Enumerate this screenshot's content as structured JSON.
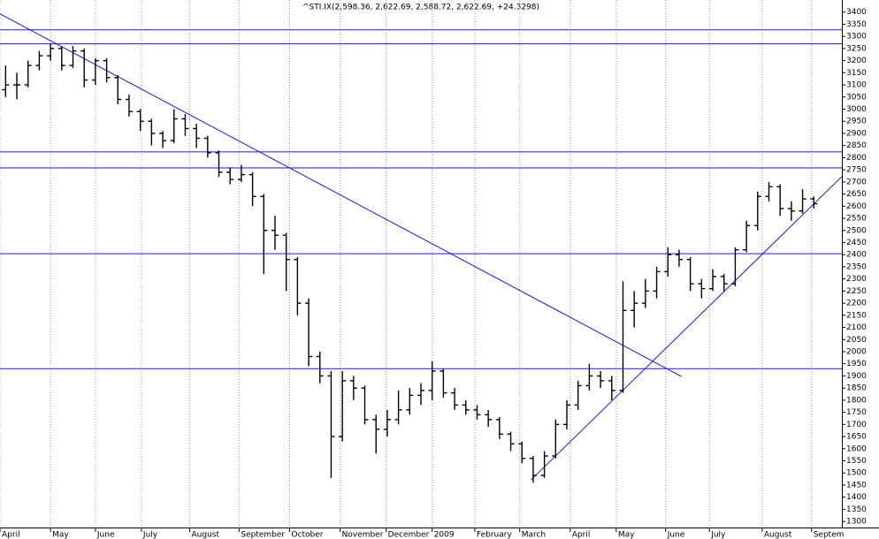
{
  "chart_data": {
    "type": "ohlc",
    "title": "^STI.IX(2,598.36, 2,622.69, 2,588.72, 2,622.69, +24.3298)",
    "x": [
      0.5,
      1.5,
      2.5,
      3.5,
      4.5,
      5.5,
      6.5,
      7.5,
      8.5,
      9.5,
      10.5,
      11.5,
      12.5,
      13.5,
      14.5,
      15.5,
      16.5,
      17.5,
      18.5,
      19.5,
      20.5,
      21.5,
      22.5,
      23.5,
      24.5,
      25.5,
      26.5,
      27.5,
      28.5,
      29.5,
      30.5,
      31.5,
      32.5,
      33.5,
      34.5,
      35.5,
      36.5,
      37.5,
      38.5,
      39.5,
      40.5,
      41.5,
      42.5,
      43.5,
      44.5,
      45.5,
      46.5,
      47.5,
      48.5,
      49.5,
      50.5,
      51.5,
      52.5,
      53.5,
      54.5,
      55.5,
      56.5,
      57.5,
      58.5,
      59.5,
      60.5,
      61.5,
      62.5,
      63.5,
      64.5,
      65.5,
      66.5,
      67.5,
      68.5,
      69.5,
      70.5,
      71.5,
      72.5
    ],
    "open": [
      3080,
      3100,
      3100,
      3180,
      3220,
      3250,
      3180,
      3240,
      3120,
      3200,
      3130,
      3040,
      2990,
      2950,
      2900,
      2870,
      2960,
      2920,
      2880,
      2820,
      2740,
      2710,
      2730,
      2640,
      2500,
      2480,
      2380,
      2200,
      1980,
      1900,
      1650,
      1880,
      1850,
      1720,
      1680,
      1720,
      1760,
      1820,
      1840,
      1920,
      1830,
      1780,
      1760,
      1740,
      1720,
      1660,
      1620,
      1560,
      1490,
      1570,
      1700,
      1780,
      1860,
      1900,
      1880,
      1840,
      2170,
      2200,
      2250,
      2330,
      2400,
      2380,
      2280,
      2260,
      2310,
      2280,
      2420,
      2520,
      2640,
      2680,
      2590,
      2580,
      2630
    ],
    "high": [
      3180,
      3150,
      3200,
      3240,
      3270,
      3260,
      3260,
      3250,
      3210,
      3210,
      3140,
      3060,
      3000,
      2960,
      2910,
      3000,
      2980,
      2940,
      2890,
      2830,
      2760,
      2770,
      2740,
      2650,
      2560,
      2490,
      2390,
      2220,
      2000,
      1920,
      1920,
      1900,
      1860,
      1740,
      1760,
      1840,
      1850,
      1870,
      1960,
      1930,
      1850,
      1800,
      1780,
      1760,
      1730,
      1670,
      1630,
      1570,
      1590,
      1720,
      1800,
      1880,
      1950,
      1920,
      1900,
      2290,
      2250,
      2300,
      2350,
      2430,
      2420,
      2390,
      2300,
      2340,
      2320,
      2430,
      2540,
      2660,
      2700,
      2690,
      2620,
      2670,
      2640
    ],
    "low": [
      3050,
      3040,
      3090,
      3160,
      3200,
      3160,
      3170,
      3090,
      3100,
      3110,
      3020,
      2970,
      2910,
      2850,
      2840,
      2860,
      2890,
      2840,
      2800,
      2720,
      2690,
      2700,
      2600,
      2320,
      2420,
      2250,
      2150,
      1940,
      1870,
      1480,
      1630,
      1800,
      1700,
      1580,
      1650,
      1700,
      1740,
      1780,
      1800,
      1810,
      1760,
      1740,
      1720,
      1690,
      1640,
      1590,
      1540,
      1460,
      1480,
      1560,
      1680,
      1760,
      1840,
      1850,
      1800,
      1830,
      2100,
      2180,
      2220,
      2310,
      2350,
      2250,
      2220,
      2250,
      2250,
      2270,
      2410,
      2500,
      2620,
      2560,
      2540,
      2570,
      2590
    ],
    "close": [
      3100,
      3100,
      3180,
      3220,
      3250,
      3180,
      3240,
      3120,
      3200,
      3130,
      3040,
      2990,
      2950,
      2900,
      2870,
      2960,
      2920,
      2880,
      2820,
      2740,
      2710,
      2730,
      2640,
      2500,
      2480,
      2380,
      2200,
      1980,
      1900,
      1650,
      1880,
      1850,
      1720,
      1680,
      1720,
      1760,
      1820,
      1840,
      1920,
      1830,
      1780,
      1760,
      1740,
      1720,
      1660,
      1620,
      1560,
      1490,
      1570,
      1700,
      1780,
      1860,
      1900,
      1880,
      1840,
      2170,
      2200,
      2250,
      2330,
      2400,
      2380,
      2280,
      2260,
      2310,
      2280,
      2420,
      2520,
      2640,
      2680,
      2590,
      2580,
      2630,
      2610
    ],
    "color": "#000000",
    "hlines": [
      3327,
      3269,
      2824,
      2758,
      2404,
      1930
    ],
    "trendlines": [
      {
        "x": [
          0,
          60.7
        ],
        "y": [
          3393,
          1898
        ]
      },
      {
        "x": [
          47.3,
          75
        ],
        "y": [
          1471,
          2722
        ]
      }
    ],
    "line_color": "#1a1ad0",
    "xlim": [
      0,
      75
    ],
    "ylim": [
      1275,
      3450
    ],
    "xticks": [
      {
        "value": 0,
        "label": "April"
      },
      {
        "value": 4.5,
        "label": "May"
      },
      {
        "value": 8.5,
        "label": "June"
      },
      {
        "value": 12.6,
        "label": "July"
      },
      {
        "value": 16.9,
        "label": "August"
      },
      {
        "value": 21.3,
        "label": "September"
      },
      {
        "value": 25.8,
        "label": "October"
      },
      {
        "value": 30.3,
        "label": "November"
      },
      {
        "value": 34.4,
        "label": "December"
      },
      {
        "value": 38.5,
        "label": "2009"
      },
      {
        "value": 42.3,
        "label": "February"
      },
      {
        "value": 46.3,
        "label": "March"
      },
      {
        "value": 50.8,
        "label": "April"
      },
      {
        "value": 54.9,
        "label": "May"
      },
      {
        "value": 59.3,
        "label": "June"
      },
      {
        "value": 63.2,
        "label": "July"
      },
      {
        "value": 67.9,
        "label": "August"
      },
      {
        "value": 72.3,
        "label": "Septem"
      }
    ],
    "yticks": [
      1300,
      1350,
      1400,
      1450,
      1500,
      1550,
      1600,
      1650,
      1700,
      1750,
      1800,
      1850,
      1900,
      1950,
      2000,
      2050,
      2100,
      2150,
      2200,
      2250,
      2300,
      2350,
      2400,
      2450,
      2500,
      2550,
      2600,
      2650,
      2700,
      2750,
      2800,
      2850,
      2900,
      2950,
      3000,
      3050,
      3100,
      3150,
      3200,
      3250,
      3300,
      3350,
      3400
    ],
    "grid": true
  }
}
